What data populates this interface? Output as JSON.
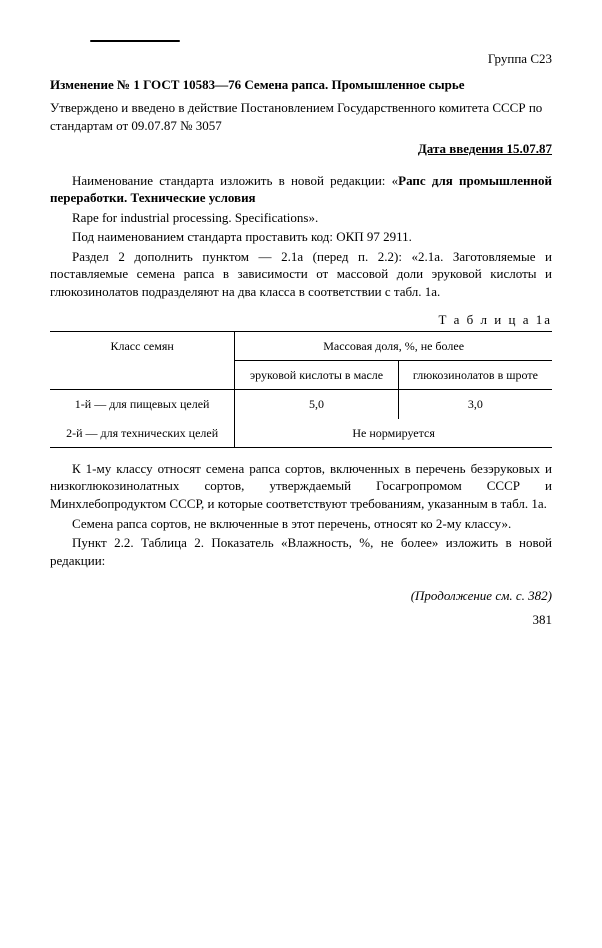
{
  "header": {
    "group": "Группа С23",
    "change_title": "Изменение № 1 ГОСТ 10583—76 Семена рапса. Промышленное сырье",
    "approval": "Утверждено и введено в действие Постановлением Государственного комитета СССР по стандартам от 09.07.87 № 3057",
    "date_label": "Дата введения 15.07.87"
  },
  "body": {
    "p1a": "Наименование стандарта изложить в новой редакции: «",
    "p1b": "Рапс для промышленной переработки. Технические условия",
    "p2": "Rape for industrial processing. Specifications».",
    "p3": "Под наименованием стандарта проставить код: ОКП 97 2911.",
    "p4": "Раздел 2 дополнить пунктом — 2.1а (перед п. 2.2): «2.1а. Заготовляемые и поставляемые семена рапса в зависимости от массовой доли эруковой кислоты и глюкозинолатов подразделяют на два класса в соответствии с табл. 1а."
  },
  "table": {
    "label": "Т а б л и ц а 1а",
    "col0_header": "Класс семян",
    "col_group": "Массовая доля, %, не более",
    "col1": "эруковой кислоты в масле",
    "col2": "глюкозинолатов в шроте",
    "row1_label": "1-й — для пищевых целей",
    "row1_v1": "5,0",
    "row1_v2": "3,0",
    "row2_label": "2-й  —  для технических целей",
    "row2_v": "Не нормируется"
  },
  "after": {
    "p5": "К 1-му классу относят семена рапса сортов, включенных в перечень безэруковых и низкоглюкозинолатных сортов, утверждаемый Госагропромом СССР и Минхлебопродуктом СССР, и которые соответствуют требованиям, указанным в табл. 1а.",
    "p6": "Семена рапса сортов, не включенные в этот перечень,  относят ко 2-му классу».",
    "p7": "Пункт 2.2. Таблица 2. Показатель «Влажность, %, не более» изложить  в новой редакции:"
  },
  "footer": {
    "continuation": "(Продолжение см. с. 382)",
    "page": "381"
  }
}
